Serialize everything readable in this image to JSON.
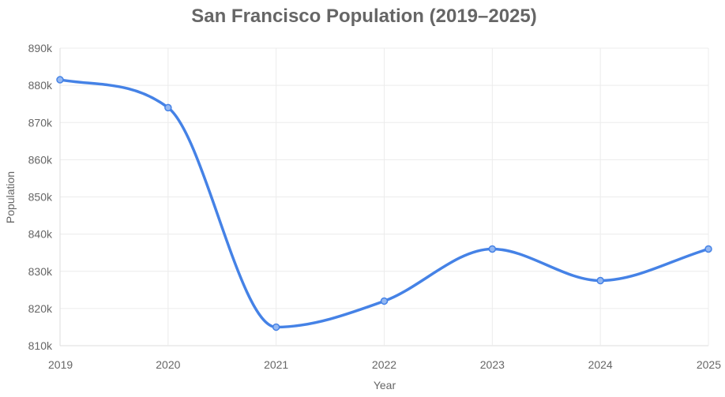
{
  "chart_data": {
    "type": "line",
    "title": "San Francisco Population (2019–2025)",
    "xlabel": "Year",
    "ylabel": "Population",
    "x": [
      "2019",
      "2020",
      "2021",
      "2022",
      "2023",
      "2024",
      "2025"
    ],
    "series": [
      {
        "name": "Population",
        "values": [
          881500,
          874000,
          815000,
          822000,
          836000,
          827500,
          836000
        ]
      }
    ],
    "ylim": [
      810000,
      890000
    ],
    "yticks": [
      810000,
      820000,
      830000,
      840000,
      850000,
      860000,
      870000,
      880000,
      890000
    ],
    "ytick_labels": [
      "810k",
      "820k",
      "830k",
      "840k",
      "850k",
      "860k",
      "870k",
      "880k",
      "890k"
    ],
    "grid": true,
    "line_color": "#4582e6",
    "point_fill": "#94b8f2",
    "point_stroke": "#4582e6"
  }
}
